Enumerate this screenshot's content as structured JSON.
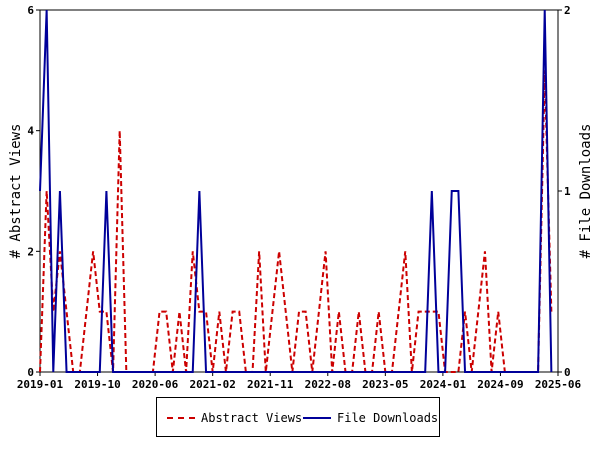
{
  "chart_data": {
    "type": "line",
    "x_tick_labels": [
      "2019-01",
      "2019-10",
      "2020-06",
      "2021-02",
      "2021-11",
      "2022-08",
      "2023-05",
      "2024-01",
      "2024-09",
      "2025-06"
    ],
    "left_axis": {
      "label": "# Abstract Views",
      "ylim": [
        0,
        6
      ],
      "ticks": [
        0,
        2,
        4,
        6
      ]
    },
    "right_axis": {
      "label": "# File Downloads",
      "ylim": [
        0,
        2
      ],
      "ticks": [
        0,
        1,
        2
      ]
    },
    "x_range_months": 78,
    "series": [
      {
        "name": "Abstract Views",
        "axis": "left",
        "color": "#cc0000",
        "style": "dashed",
        "points": [
          [
            0,
            0
          ],
          [
            1,
            3
          ],
          [
            2,
            1
          ],
          [
            3,
            2
          ],
          [
            4,
            1
          ],
          [
            5,
            0
          ],
          [
            6,
            0
          ],
          [
            7,
            1
          ],
          [
            8,
            2
          ],
          [
            9,
            1
          ],
          [
            10,
            1
          ],
          [
            11,
            0
          ],
          [
            12,
            4
          ],
          [
            13,
            0
          ],
          [
            14,
            0
          ],
          [
            15,
            0
          ],
          [
            16,
            0
          ],
          [
            17,
            0
          ],
          [
            18,
            1
          ],
          [
            19,
            1
          ],
          [
            20,
            0
          ],
          [
            21,
            1
          ],
          [
            22,
            0
          ],
          [
            23,
            2
          ],
          [
            24,
            1
          ],
          [
            25,
            1
          ],
          [
            26,
            0
          ],
          [
            27,
            1
          ],
          [
            28,
            0
          ],
          [
            29,
            1
          ],
          [
            30,
            1
          ],
          [
            31,
            0
          ],
          [
            32,
            0
          ],
          [
            33,
            2
          ],
          [
            34,
            0
          ],
          [
            35,
            1
          ],
          [
            36,
            2
          ],
          [
            37,
            1
          ],
          [
            38,
            0
          ],
          [
            39,
            1
          ],
          [
            40,
            1
          ],
          [
            41,
            0
          ],
          [
            42,
            1
          ],
          [
            43,
            2
          ],
          [
            44,
            0
          ],
          [
            45,
            1
          ],
          [
            46,
            0
          ],
          [
            47,
            0
          ],
          [
            48,
            1
          ],
          [
            49,
            0
          ],
          [
            50,
            0
          ],
          [
            51,
            1
          ],
          [
            52,
            0
          ],
          [
            53,
            0
          ],
          [
            54,
            1
          ],
          [
            55,
            2
          ],
          [
            56,
            0
          ],
          [
            57,
            1
          ],
          [
            58,
            1
          ],
          [
            59,
            1
          ],
          [
            60,
            1
          ],
          [
            61,
            0
          ],
          [
            62,
            0
          ],
          [
            63,
            0
          ],
          [
            64,
            1
          ],
          [
            65,
            0
          ],
          [
            66,
            1
          ],
          [
            67,
            2
          ],
          [
            68,
            0
          ],
          [
            69,
            1
          ],
          [
            70,
            0
          ],
          [
            71,
            0
          ],
          [
            72,
            0
          ],
          [
            73,
            0
          ],
          [
            74,
            0
          ],
          [
            75,
            0
          ],
          [
            76,
            5
          ],
          [
            77,
            1
          ]
        ]
      },
      {
        "name": "File Downloads",
        "axis": "right",
        "color": "#000099",
        "style": "solid",
        "points": [
          [
            0,
            1
          ],
          [
            1,
            2
          ],
          [
            2,
            0
          ],
          [
            3,
            1
          ],
          [
            4,
            0
          ],
          [
            5,
            0
          ],
          [
            6,
            0
          ],
          [
            7,
            0
          ],
          [
            8,
            0
          ],
          [
            9,
            0
          ],
          [
            10,
            1
          ],
          [
            11,
            0
          ],
          [
            12,
            0
          ],
          [
            13,
            0
          ],
          [
            14,
            0
          ],
          [
            15,
            0
          ],
          [
            16,
            0
          ],
          [
            17,
            0
          ],
          [
            18,
            0
          ],
          [
            19,
            0
          ],
          [
            20,
            0
          ],
          [
            21,
            0
          ],
          [
            22,
            0
          ],
          [
            23,
            0
          ],
          [
            24,
            1
          ],
          [
            25,
            0
          ],
          [
            26,
            0
          ],
          [
            27,
            0
          ],
          [
            28,
            0
          ],
          [
            29,
            0
          ],
          [
            30,
            0
          ],
          [
            31,
            0
          ],
          [
            32,
            0
          ],
          [
            33,
            0
          ],
          [
            34,
            0
          ],
          [
            35,
            0
          ],
          [
            36,
            0
          ],
          [
            37,
            0
          ],
          [
            38,
            0
          ],
          [
            39,
            0
          ],
          [
            40,
            0
          ],
          [
            41,
            0
          ],
          [
            42,
            0
          ],
          [
            43,
            0
          ],
          [
            44,
            0
          ],
          [
            45,
            0
          ],
          [
            46,
            0
          ],
          [
            47,
            0
          ],
          [
            48,
            0
          ],
          [
            49,
            0
          ],
          [
            50,
            0
          ],
          [
            51,
            0
          ],
          [
            52,
            0
          ],
          [
            53,
            0
          ],
          [
            54,
            0
          ],
          [
            55,
            0
          ],
          [
            56,
            0
          ],
          [
            57,
            0
          ],
          [
            58,
            0
          ],
          [
            59,
            1
          ],
          [
            60,
            0
          ],
          [
            61,
            0
          ],
          [
            62,
            1
          ],
          [
            63,
            1
          ],
          [
            64,
            0
          ],
          [
            65,
            0
          ],
          [
            66,
            0
          ],
          [
            67,
            0
          ],
          [
            68,
            0
          ],
          [
            69,
            0
          ],
          [
            70,
            0
          ],
          [
            71,
            0
          ],
          [
            72,
            0
          ],
          [
            73,
            0
          ],
          [
            74,
            0
          ],
          [
            75,
            0
          ],
          [
            76,
            2
          ],
          [
            77,
            0
          ]
        ]
      }
    ],
    "legend_position": "bottom-center"
  }
}
